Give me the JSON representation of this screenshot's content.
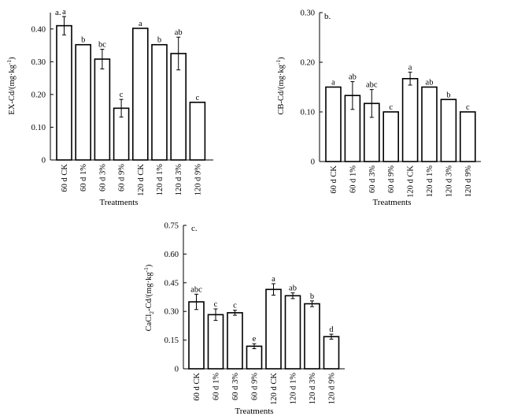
{
  "chart_data": [
    {
      "type": "bar",
      "panel_label": "a.",
      "ylabel": "EX-Cd/(mg·kg",
      "ylabel_sup": "-1",
      "ylabel_close": ")",
      "xlabel": "Treatments",
      "ylim": [
        0,
        0.45
      ],
      "yticks": [
        0,
        0.1,
        0.2,
        0.3,
        0.4
      ],
      "ytick_labels": [
        "0",
        "0.10",
        "0.20",
        "0.30",
        "0.40"
      ],
      "categories": [
        "60 d CK",
        "60 d 1%",
        "60 d 3%",
        "60 d 9%",
        "120 d CK",
        "120 d 1%",
        "120 d 3%",
        "120 d 9%"
      ],
      "values": [
        0.41,
        0.352,
        0.308,
        0.158,
        0.402,
        0.352,
        0.325,
        0.176
      ],
      "errors": [
        0.028,
        0,
        0.03,
        0.027,
        0,
        0,
        0.05,
        0
      ],
      "letters": [
        "a",
        "b",
        "bc",
        "c",
        "a",
        "b",
        "ab",
        "c"
      ]
    },
    {
      "type": "bar",
      "panel_label": "b.",
      "ylabel": "CB-Cd/(mg·kg",
      "ylabel_sup": "-1",
      "ylabel_close": ")",
      "xlabel": "Treatments",
      "ylim": [
        0,
        0.3
      ],
      "yticks": [
        0,
        0.1,
        0.2,
        0.3
      ],
      "ytick_labels": [
        "0",
        "0.10",
        "0.20",
        "0.30"
      ],
      "categories": [
        "60 d CK",
        "60 d 1%",
        "60 d 3%",
        "60 d 9%",
        "120 d CK",
        "120 d 1%",
        "120 d 3%",
        "120 d 9%"
      ],
      "values": [
        0.15,
        0.133,
        0.117,
        0.1,
        0.167,
        0.15,
        0.125,
        0.1
      ],
      "errors": [
        0,
        0.028,
        0.028,
        0,
        0.013,
        0,
        0,
        0
      ],
      "letters": [
        "a",
        "ab",
        "abc",
        "c",
        "a",
        "ab",
        "b",
        "c"
      ]
    },
    {
      "type": "bar",
      "panel_label": "c.",
      "ylabel": "CaCl",
      "ylabel_sub": "2",
      "ylabel_rest": "-Cd/(mg·kg",
      "ylabel_sup": "-1",
      "ylabel_close": ")",
      "xlabel": "Treatments",
      "ylim": [
        0,
        0.75
      ],
      "yticks": [
        0,
        0.15,
        0.3,
        0.45,
        0.6,
        0.75
      ],
      "ytick_labels": [
        "0",
        "0.15",
        "0.30",
        "0.45",
        "0.60",
        "0.75"
      ],
      "categories": [
        "60 d CK",
        "60 d 1%",
        "60 d 3%",
        "60 d 9%",
        "120 d CK",
        "120 d 1%",
        "120 d 3%",
        "120 d 9%"
      ],
      "values": [
        0.35,
        0.283,
        0.293,
        0.118,
        0.415,
        0.382,
        0.34,
        0.168
      ],
      "errors": [
        0.04,
        0.03,
        0.013,
        0.013,
        0.03,
        0.015,
        0.015,
        0.013
      ],
      "letters": [
        "abc",
        "c",
        "c",
        "e",
        "a",
        "ab",
        "b",
        "d"
      ]
    }
  ]
}
